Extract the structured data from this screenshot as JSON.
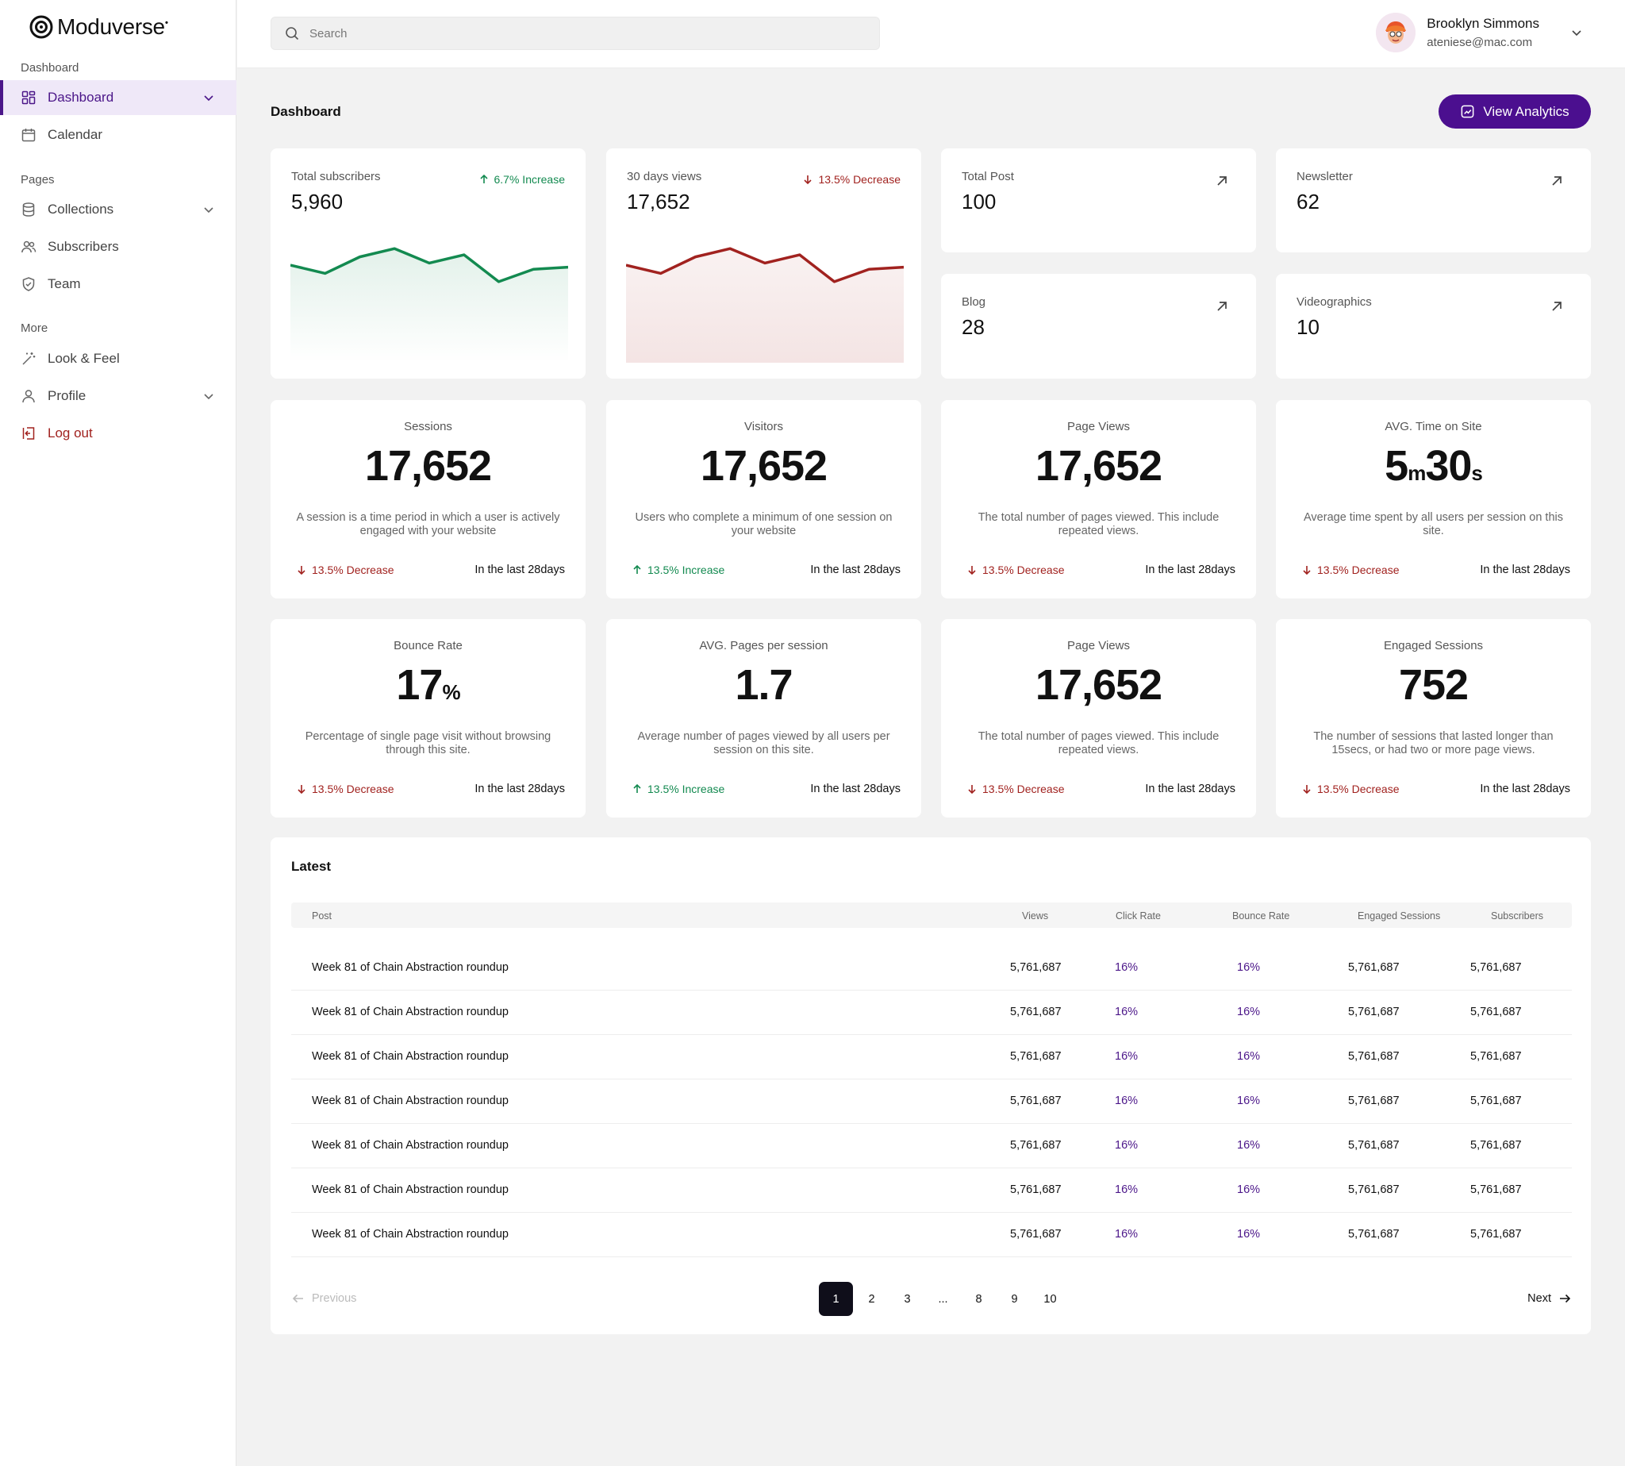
{
  "brand": {
    "name": "Moduverse",
    "mark": "•"
  },
  "sidebar": {
    "sections": [
      "Dashboard",
      "Pages",
      "More"
    ],
    "items": [
      {
        "label": "Dashboard",
        "icon": "grid-icon"
      },
      {
        "label": "Calendar",
        "icon": "calendar-icon"
      },
      {
        "label": "Collections",
        "icon": "database-icon"
      },
      {
        "label": "Subscribers",
        "icon": "users-icon"
      },
      {
        "label": "Team",
        "icon": "shield-icon"
      },
      {
        "label": "Look & Feel",
        "icon": "magic-wand-icon"
      },
      {
        "label": "Profile",
        "icon": "user-icon"
      },
      {
        "label": "Log out",
        "icon": "logout-icon"
      }
    ]
  },
  "search": {
    "placeholder": "Search"
  },
  "user": {
    "name": "Brooklyn Simmons",
    "email": "ateniese@mac.com"
  },
  "header": {
    "title": "Dashboard",
    "analytics_button": "View Analytics"
  },
  "summary": {
    "subscribers": {
      "label": "Total subscribers",
      "value": "5,960",
      "trend": "6.7% Increase",
      "direction": "up",
      "chart": [
        40,
        36,
        44,
        48,
        41,
        45,
        32,
        38,
        39
      ]
    },
    "views": {
      "label": "30 days views",
      "value": "17,652",
      "trend": "13.5% Decrease",
      "direction": "down",
      "chart": [
        40,
        36,
        44,
        48,
        41,
        45,
        32,
        38,
        39
      ]
    },
    "total_post": {
      "label": "Total Post",
      "value": "100"
    },
    "newsletter": {
      "label": "Newsletter",
      "value": "62"
    },
    "blog": {
      "label": "Blog",
      "value": "28"
    },
    "videographics": {
      "label": "Videographics",
      "value": "10"
    }
  },
  "metrics": [
    {
      "label": "Sessions",
      "value": "17,652",
      "unit": "",
      "desc": "A session is a time period in which a user is actively engaged with your website",
      "trend": "13.5% Decrease",
      "direction": "down",
      "period": "In the last 28days"
    },
    {
      "label": "Visitors",
      "value": "17,652",
      "unit": "",
      "desc": "Users who complete a minimum of one session on your website",
      "trend": "13.5% Increase",
      "direction": "up",
      "period": "In the last 28days"
    },
    {
      "label": "Page Views",
      "value": "17,652",
      "unit": "",
      "desc": "The total number of pages viewed. This include repeated views.",
      "trend": "13.5% Decrease",
      "direction": "down",
      "period": "In the last 28days"
    },
    {
      "label": "AVG. Time on Site",
      "value_min": "5",
      "unit_min": "m",
      "value_sec": "30",
      "unit_sec": "s",
      "desc": "Average time spent by all users per session on this site.",
      "trend": "13.5% Decrease",
      "direction": "down",
      "period": "In the last 28days"
    },
    {
      "label": "Bounce Rate",
      "value": "17",
      "unit": "%",
      "desc": "Percentage of single page visit without browsing through this site.",
      "trend": "13.5% Decrease",
      "direction": "down",
      "period": "In the last 28days"
    },
    {
      "label": "AVG. Pages per session",
      "value": "1.7",
      "unit": "",
      "desc": "Average number of pages viewed by all users per session on this site.",
      "trend": "13.5% Increase",
      "direction": "up",
      "period": "In the last 28days"
    },
    {
      "label": "Page Views",
      "value": "17,652",
      "unit": "",
      "desc": "The total number of pages viewed. This include repeated views.",
      "trend": "13.5% Decrease",
      "direction": "down",
      "period": "In the last 28days"
    },
    {
      "label": "Engaged Sessions",
      "value": "752",
      "unit": "",
      "desc": "The number of sessions that lasted longer than 15secs, or had two or more page views.",
      "trend": "13.5% Decrease",
      "direction": "down",
      "period": "In the last 28days"
    }
  ],
  "latest": {
    "title": "Latest",
    "columns": [
      "Post",
      "Views",
      "Click Rate",
      "Bounce Rate",
      "Engaged Sessions",
      "Subscribers"
    ],
    "rows": [
      [
        "Week 81 of Chain Abstraction roundup",
        "5,761,687",
        "16%",
        "16%",
        "5,761,687",
        "5,761,687"
      ],
      [
        "Week 81 of Chain Abstraction roundup",
        "5,761,687",
        "16%",
        "16%",
        "5,761,687",
        "5,761,687"
      ],
      [
        "Week 81 of Chain Abstraction roundup",
        "5,761,687",
        "16%",
        "16%",
        "5,761,687",
        "5,761,687"
      ],
      [
        "Week 81 of Chain Abstraction roundup",
        "5,761,687",
        "16%",
        "16%",
        "5,761,687",
        "5,761,687"
      ],
      [
        "Week 81 of Chain Abstraction roundup",
        "5,761,687",
        "16%",
        "16%",
        "5,761,687",
        "5,761,687"
      ],
      [
        "Week 81 of Chain Abstraction roundup",
        "5,761,687",
        "16%",
        "16%",
        "5,761,687",
        "5,761,687"
      ],
      [
        "Week 81 of Chain Abstraction roundup",
        "5,761,687",
        "16%",
        "16%",
        "5,761,687",
        "5,761,687"
      ]
    ]
  },
  "pagination": {
    "previous": "Previous",
    "next": "Next",
    "pages": [
      "1",
      "2",
      "3",
      "...",
      "8",
      "9",
      "10"
    ],
    "current": "1"
  },
  "colors": {
    "accent": "#4b0f8f",
    "up": "#138a50",
    "down": "#a1221f"
  }
}
